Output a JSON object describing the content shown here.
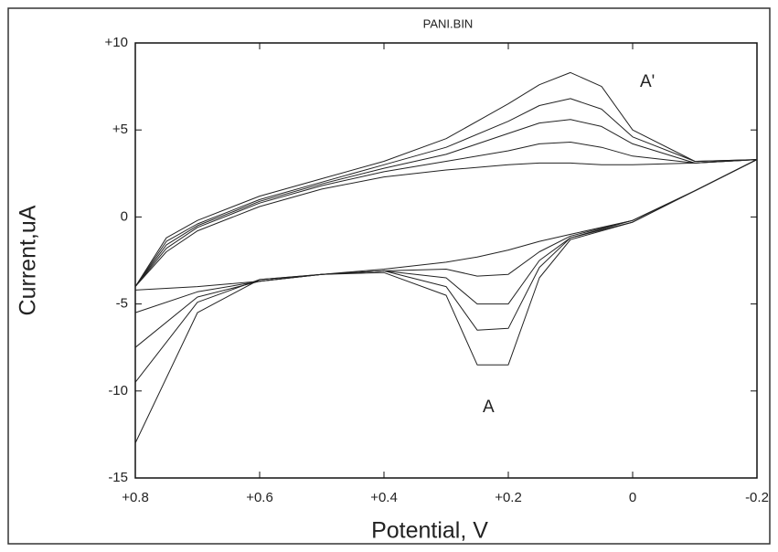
{
  "chart_data": {
    "type": "line",
    "title": "PANI.BIN",
    "x_label": "Potential, V",
    "y_label": "Current,uA",
    "annotations": [
      "A'",
      "A"
    ],
    "x": [
      0.8,
      0.75,
      0.7,
      0.6,
      0.5,
      0.4,
      0.3,
      0.2,
      0.15,
      0.1,
      0.05,
      0,
      -0.1,
      -0.2,
      -0.1,
      0,
      0.1,
      0.15,
      0.2,
      0.25,
      0.3,
      0.4,
      0.5,
      0.6,
      0.7,
      0.8
    ],
    "series": [
      {
        "color": "#222222",
        "values": [
          -4,
          -2,
          -0.8,
          0.6,
          1.6,
          2.3,
          2.7,
          3.0,
          3.1,
          3.1,
          3.0,
          3.0,
          3.1,
          3.3,
          1.5,
          -0.2,
          -1.0,
          -1.4,
          -1.9,
          -2.3,
          -2.6,
          -3.0,
          -3.3,
          -3.7,
          -4.0,
          -4.2
        ]
      },
      {
        "color": "#222222",
        "values": [
          -4,
          -1.8,
          -0.6,
          0.8,
          1.8,
          2.6,
          3.2,
          3.8,
          4.2,
          4.3,
          4.0,
          3.5,
          3.1,
          3.3,
          1.5,
          -0.2,
          -1.1,
          -2.0,
          -3.3,
          -3.4,
          -3.0,
          -3.1,
          -3.3,
          -3.7,
          -4.3,
          -5.5
        ]
      },
      {
        "color": "#222222",
        "values": [
          -4,
          -1.6,
          -0.5,
          0.9,
          1.9,
          2.8,
          3.6,
          4.8,
          5.4,
          5.6,
          5.2,
          4.2,
          3.1,
          3.3,
          1.5,
          -0.2,
          -1.2,
          -2.5,
          -5.0,
          -5.0,
          -3.5,
          -3.1,
          -3.3,
          -3.7,
          -4.6,
          -7.5
        ]
      },
      {
        "color": "#222222",
        "values": [
          -4,
          -1.4,
          -0.4,
          1.0,
          2.0,
          3.0,
          4.0,
          5.5,
          6.4,
          6.8,
          6.2,
          4.6,
          3.2,
          3.3,
          1.5,
          -0.3,
          -1.2,
          -2.9,
          -6.4,
          -6.5,
          -4.0,
          -3.1,
          -3.3,
          -3.6,
          -4.9,
          -9.5
        ]
      },
      {
        "color": "#222222",
        "values": [
          -4,
          -1.2,
          -0.2,
          1.2,
          2.2,
          3.2,
          4.5,
          6.5,
          7.6,
          8.3,
          7.5,
          5.0,
          3.2,
          3.3,
          1.5,
          -0.3,
          -1.3,
          -3.5,
          -8.5,
          -8.5,
          -4.5,
          -3.2,
          -3.3,
          -3.6,
          -5.5,
          -13
        ]
      }
    ],
    "xlim": [
      0.8,
      -0.2
    ],
    "xticks": [
      {
        "value": 0.8,
        "label": "+0.8"
      },
      {
        "value": 0.6,
        "label": "+0.6"
      },
      {
        "value": 0.4,
        "label": "+0.4"
      },
      {
        "value": 0.2,
        "label": "+0.2"
      },
      0,
      -0.2
    ],
    "ylim": [
      -15,
      10
    ],
    "yticks": [
      {
        "value": 10,
        "label": "+10"
      },
      {
        "value": 5,
        "label": "+5"
      },
      0,
      -5,
      -10,
      -15
    ]
  }
}
